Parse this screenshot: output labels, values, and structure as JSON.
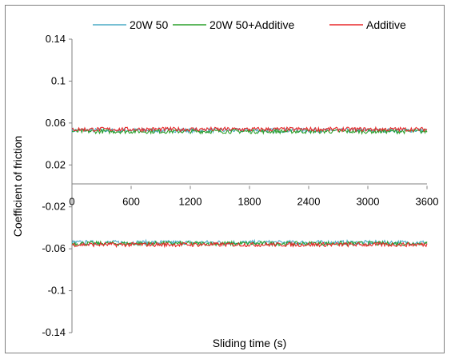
{
  "chart_data": {
    "type": "line",
    "title": "",
    "xlabel": "Sliding time (s)",
    "ylabel": "Coefficient of friction",
    "xlim": [
      0,
      3600
    ],
    "ylim": [
      -0.14,
      0.14
    ],
    "x_ticks": [
      "0",
      "600",
      "1200",
      "1800",
      "2400",
      "3000",
      "3600"
    ],
    "y_ticks": [
      "0.14",
      "0.1",
      "0.06",
      "0.02",
      "-0.02",
      "-0.06",
      "-0.1",
      "-0.14"
    ],
    "grid": false,
    "legend_position": "top",
    "series": [
      {
        "name": "20W 50",
        "color": "#4bacc6",
        "upper_level": 0.053,
        "lower_level": -0.054
      },
      {
        "name": "20W 50+Additive",
        "color": "#2ca02c",
        "upper_level": 0.052,
        "lower_level": -0.055
      },
      {
        "name": "Additive",
        "color": "#e8282b",
        "upper_level": 0.054,
        "lower_level": -0.056
      }
    ]
  }
}
